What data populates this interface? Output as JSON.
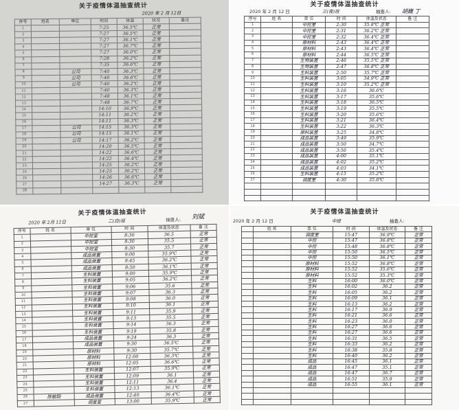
{
  "sheets": [
    {
      "id": "top-left",
      "title": "关于疫情体温抽查统计",
      "date": "2020 年 2 月 12日",
      "shift": "",
      "inspector_label": "",
      "inspector": "",
      "columns": [
        "序号",
        "姓名",
        "单位",
        "时间",
        "体温",
        "状况",
        "备注"
      ],
      "rows": [
        [
          "1",
          "",
          "",
          "7:25",
          "36.5℃",
          "正常",
          ""
        ],
        [
          "2",
          "",
          "",
          "7:27",
          "36.5℃",
          "正常",
          ""
        ],
        [
          "3",
          "",
          "",
          "7:27",
          "36.1℃",
          "正常",
          ""
        ],
        [
          "4",
          "",
          "",
          "7:27",
          "36.7℃",
          "正常",
          ""
        ],
        [
          "5",
          "",
          "",
          "7:27",
          "36.0℃",
          "正常",
          ""
        ],
        [
          "6",
          "",
          "",
          "7:28",
          "36.2℃",
          "正常",
          ""
        ],
        [
          "7",
          "",
          "",
          "7:35",
          "36.6℃",
          "正常",
          ""
        ],
        [
          "8",
          "",
          "公司",
          "7:40",
          "36.3℃",
          "正常",
          ""
        ],
        [
          "9",
          "",
          "公司",
          "7:40",
          "36.6℃",
          "正常",
          ""
        ],
        [
          "10",
          "",
          "公司",
          "7:40",
          "36.2℃",
          "正常",
          ""
        ],
        [
          "11",
          "",
          "",
          "7:40",
          "36.3℃",
          "正常",
          ""
        ],
        [
          "12",
          "",
          "",
          "7:48",
          "36.1℃",
          "正常",
          ""
        ],
        [
          "13",
          "",
          "",
          "7:48",
          "36.7℃",
          "正常",
          ""
        ],
        [
          "14",
          "",
          "",
          "14:10",
          "36.9℃",
          "正常",
          ""
        ],
        [
          "15",
          "",
          "",
          "14:11",
          "36.2℃",
          "正常",
          ""
        ],
        [
          "16",
          "",
          "",
          "14:11",
          "36.3℃",
          "正常",
          ""
        ],
        [
          "17",
          "",
          "公司",
          "14:15",
          "36.3℃",
          "正常",
          ""
        ],
        [
          "18",
          "",
          "公司",
          "14:15",
          "36.1℃",
          "正常",
          ""
        ],
        [
          "19",
          "",
          "公司",
          "14:17",
          "36.2℃",
          "正常",
          ""
        ],
        [
          "20",
          "",
          "",
          "14:20",
          "36.5℃",
          "正常",
          ""
        ],
        [
          "21",
          "",
          "",
          "14:22",
          "36.6℃",
          "正常",
          ""
        ],
        [
          "22",
          "",
          "",
          "14:22",
          "36.4℃",
          "正常",
          ""
        ],
        [
          "23",
          "",
          "",
          "14:25",
          "36.2℃",
          "正常",
          ""
        ],
        [
          "24",
          "",
          "",
          "14:25",
          "36.2℃",
          "正常",
          ""
        ],
        [
          "26",
          "",
          "",
          "14:26",
          "36.6℃",
          "正常",
          ""
        ],
        [
          "27",
          "",
          "",
          "14:27",
          "36.3℃",
          "正常",
          ""
        ],
        [
          "28",
          "",
          "",
          "",
          "",
          "",
          ""
        ]
      ]
    },
    {
      "id": "top-right",
      "title": "关于疫情体温抽查统计",
      "date": "2020 年 2 月 12 日",
      "shift": "三(夜)班",
      "inspector_label": "抽查人:",
      "inspector": "胡巍 丁",
      "columns": [
        "序号",
        "姓 名",
        "单 位",
        "时 间",
        "体温及状态",
        "备 注"
      ],
      "rows": [
        [
          "1",
          "",
          "中控室",
          "2:30",
          "35.8℃ 正常",
          ""
        ],
        [
          "2",
          "",
          "中控室",
          "2:31",
          "36.2℃ 正常",
          ""
        ],
        [
          "3",
          "",
          "中控室",
          "2:32",
          "36.4℃ 正常",
          ""
        ],
        [
          "4",
          "",
          "原材料",
          "2:43",
          "36.4℃ 正常",
          ""
        ],
        [
          "5",
          "",
          "原材料",
          "2:43",
          "36.4℃ 正常",
          ""
        ],
        [
          "6",
          "",
          "原材料",
          "2:44",
          "36.5℃ 正常",
          ""
        ],
        [
          "7",
          "",
          "生物装置",
          "2:46",
          "35.5℃ 正常",
          ""
        ],
        [
          "8",
          "",
          "生物装置",
          "2:47",
          "36.8℃ 正常",
          ""
        ],
        [
          "9",
          "",
          "生料装置",
          "2:50",
          "35.7℃ 正常",
          ""
        ],
        [
          "10",
          "",
          "生料装置",
          "3:05",
          "34.9℃ 正常",
          ""
        ],
        [
          "11",
          "",
          "生料装置",
          "3:10",
          "35.2℃ 正常",
          ""
        ],
        [
          "12",
          "",
          "生料装置",
          "3:16",
          "36.6℃",
          ""
        ],
        [
          "13",
          "",
          "生料装置",
          "3:17",
          "35.6℃",
          ""
        ],
        [
          "14",
          "",
          "生料装置",
          "3:18",
          "36.5℃",
          ""
        ],
        [
          "15",
          "",
          "生料装置",
          "3:19",
          "35.5℃",
          ""
        ],
        [
          "16",
          "",
          "生料装置",
          "3:20",
          "35.6℃",
          ""
        ],
        [
          "17",
          "",
          "生料装置",
          "3:21",
          "36.4℃",
          ""
        ],
        [
          "18",
          "",
          "生料装置",
          "3:22",
          "36.3℃",
          ""
        ],
        [
          "19",
          "",
          "原料装置",
          "3:25",
          "34.8℃",
          ""
        ],
        [
          "20",
          "",
          "成品装置",
          "3:49",
          "35.9℃",
          ""
        ],
        [
          "21",
          "",
          "成品装置",
          "3:50",
          "34.7℃",
          ""
        ],
        [
          "22",
          "",
          "成品装置",
          "3:56",
          "35.4℃",
          ""
        ],
        [
          "23",
          "",
          "成品装置",
          "4:00",
          "35.1℃",
          ""
        ],
        [
          "24",
          "",
          "成品装置",
          "4:02",
          "35.2℃",
          ""
        ],
        [
          "25",
          "",
          "成品装置",
          "4:03",
          "34.1℃",
          ""
        ],
        [
          "26",
          "",
          "生料装置",
          "4:15",
          "35.2℃",
          ""
        ],
        [
          "27",
          "",
          "调度室",
          "4:30",
          "35.8℃",
          ""
        ],
        [
          "",
          "",
          "",
          "",
          "",
          ""
        ],
        [
          "",
          "",
          "",
          "",
          "",
          ""
        ],
        [
          "",
          "",
          "",
          "",
          "",
          ""
        ]
      ]
    },
    {
      "id": "bottom-left",
      "title": "关于疫情体温抽查统计",
      "date": "2020 年 2月 12日",
      "shift": "二(白)班",
      "inspector_label": "抽查人:",
      "inspector": "刘斌",
      "columns": [
        "序号",
        "姓 名",
        "单 位",
        "时 间",
        "体温及状态",
        "备 注"
      ],
      "rows": [
        [
          "1",
          "",
          "中控室",
          "8:30",
          "36.5",
          "正常"
        ],
        [
          "2",
          "",
          "中控室",
          "8:30",
          "35.5",
          "正常"
        ],
        [
          "3",
          "",
          "中控室",
          "8:30",
          "35.7",
          "正常"
        ],
        [
          "4",
          "",
          "成品装置",
          "9:00",
          "35.9℃",
          "正常"
        ],
        [
          "5",
          "",
          "成品装置",
          "8:45",
          "36.2℃",
          "正常"
        ],
        [
          "6",
          "",
          "成品装置",
          "8:50",
          "36.1℃",
          "正常"
        ],
        [
          "7",
          "",
          "生料装置",
          "9:00",
          "35.9℃",
          "正常"
        ],
        [
          "8",
          "",
          "生料装置",
          "9:05",
          "36.2℃",
          "正常"
        ],
        [
          "9",
          "",
          "生料装置",
          "9:06",
          "35.6",
          "正常"
        ],
        [
          "10",
          "",
          "生料装置",
          "9:07",
          "36.3",
          "正常"
        ],
        [
          "11",
          "",
          "生料装置",
          "9:08",
          "36.0",
          "正常"
        ],
        [
          "12",
          "",
          "生料装置",
          "9:10",
          "36.1",
          "正常"
        ],
        [
          "13",
          "",
          "生料装置",
          "9:11",
          "35.9",
          "正常"
        ],
        [
          "14",
          "",
          "生料装置",
          "9:13",
          "35.5",
          "正常"
        ],
        [
          "15",
          "",
          "生料装置",
          "9:14",
          "36.3",
          "正常"
        ],
        [
          "16",
          "",
          "生料装置",
          "9:19",
          "35.8",
          "正常"
        ],
        [
          "17",
          "",
          "成品装置",
          "9:24",
          "36.3",
          "正常"
        ],
        [
          "18",
          "",
          "成品装置",
          "9:30",
          "36.5℃",
          "正常"
        ],
        [
          "19",
          "",
          "原材料",
          "9:30",
          "35.7℃",
          "正常"
        ],
        [
          "20",
          "",
          "原材料",
          "12:00",
          "36.3℃",
          "正常"
        ],
        [
          "21",
          "",
          "原材料",
          "12:05",
          "36.6℃",
          "正常"
        ],
        [
          "22",
          "",
          "生料装置",
          "12:07",
          "35.9℃",
          "正常"
        ],
        [
          "23",
          "",
          "生料装置",
          "12:09",
          "36.1",
          "正常"
        ],
        [
          "24",
          "",
          "生料装置",
          "12:11",
          "36.4",
          "正常"
        ],
        [
          "25",
          "",
          "生料装置",
          "12:13",
          "36.1℃",
          "正常"
        ],
        [
          "26",
          "陈敏翔",
          "成品装置",
          "12:40",
          "36.4℃",
          "正常"
        ],
        [
          "27",
          "",
          "调度室",
          "13:00",
          "35.9℃",
          "正常"
        ]
      ]
    },
    {
      "id": "bottom-right",
      "title": "关于疫情体温抽查统计",
      "date": "2020 年 2 月 12 日",
      "shift": "中班",
      "inspector_label": "抽查人:",
      "inspector": "",
      "columns": [
        "",
        "姓 名",
        "单 位",
        "时 间",
        "体温及状态",
        "备 注"
      ],
      "rows": [
        [
          "",
          "",
          "调度室",
          "15:47",
          "36.9℃",
          "正常"
        ],
        [
          "",
          "",
          "中控",
          "15:47",
          "36.8℃",
          "正常"
        ],
        [
          "",
          "",
          "中控",
          "15:48",
          "36.8℃",
          "正常"
        ],
        [
          "",
          "",
          "中控",
          "15:50",
          "36.5℃",
          "正常"
        ],
        [
          "",
          "",
          "中控",
          "15:50",
          "36.1℃",
          "正常"
        ],
        [
          "",
          "",
          "原材料",
          "15:52",
          "36.8℃",
          "正常"
        ],
        [
          "",
          "",
          "原材料",
          "15:52",
          "35.6℃",
          "正常"
        ],
        [
          "",
          "",
          "原材料",
          "15:52",
          "35.3℃",
          "正常"
        ],
        [
          "",
          "",
          "生料",
          "16:00",
          "36.0℃",
          "正常"
        ],
        [
          "",
          "",
          "生料",
          "16:02",
          "36.2",
          "正常"
        ],
        [
          "",
          "",
          "生料",
          "16:05",
          "36.2",
          "正常"
        ],
        [
          "",
          "",
          "生料",
          "16:09",
          "36.1",
          "正常"
        ],
        [
          "",
          "",
          "生料",
          "16:13",
          "36.2",
          "正常"
        ],
        [
          "",
          "",
          "生料",
          "16:17",
          "36.9",
          "正常"
        ],
        [
          "",
          "",
          "生料",
          "16:21",
          "36.6",
          "正常"
        ],
        [
          "",
          "",
          "生料",
          "16:23",
          "36.0",
          "正常"
        ],
        [
          "",
          "",
          "生料",
          "16:27",
          "36.6",
          "正常"
        ],
        [
          "",
          "",
          "生料",
          "16:27",
          "36.6",
          "正常"
        ],
        [
          "",
          "",
          "生料",
          "16:31",
          "36.5",
          "正常"
        ],
        [
          "",
          "",
          "生料",
          "16:33",
          "36.2",
          "正常"
        ],
        [
          "",
          "",
          "生料",
          "16:38",
          "35.8",
          "正常"
        ],
        [
          "",
          "",
          "生料",
          "16:40",
          "36.2",
          "正常"
        ],
        [
          "",
          "",
          "成品",
          "16:45",
          "36.1",
          "正常"
        ],
        [
          "",
          "",
          "成品",
          "16:47",
          "35.1",
          "正常"
        ],
        [
          "",
          "",
          "成品",
          "16:47",
          "36.7",
          "正常"
        ],
        [
          "",
          "",
          "成品",
          "16:51",
          "35.9",
          "正常"
        ],
        [
          "",
          "",
          "成品",
          "16:55",
          "36.1",
          "正常"
        ],
        [
          "",
          "",
          "",
          "",
          "",
          ""
        ],
        [
          "",
          "",
          "",
          "",
          "",
          ""
        ],
        [
          "",
          "",
          "",
          "",
          "",
          ""
        ]
      ]
    }
  ]
}
